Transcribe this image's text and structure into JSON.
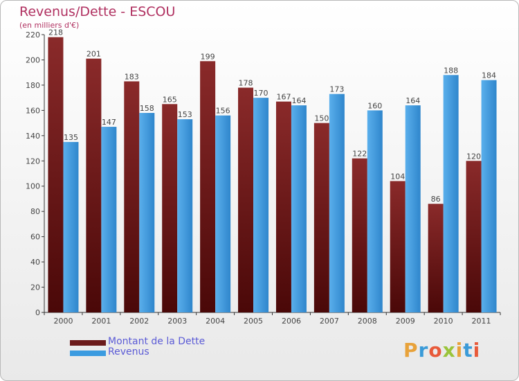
{
  "title": "Revenus/Dette - ESCOU",
  "subtitle": "(en milliers d'€)",
  "logo": {
    "text": "Proxiti",
    "colors": [
      "#e8a23a",
      "#3b9bd8",
      "#e85a3a",
      "#9ac43a",
      "#e8a23a",
      "#3b9bd8",
      "#e85a3a"
    ]
  },
  "colors": {
    "dette": "#6b1a1a",
    "revenus": "#3b9be0",
    "title": "#b03060",
    "legend_text": "#5b5bd6"
  },
  "chart_data": {
    "type": "bar",
    "title": "Revenus/Dette - ESCOU",
    "subtitle": "(en milliers d'€)",
    "categories": [
      "2000",
      "2001",
      "2002",
      "2003",
      "2004",
      "2005",
      "2006",
      "2007",
      "2008",
      "2009",
      "2010",
      "2011"
    ],
    "series": [
      {
        "name": "Montant de la Dette",
        "values": [
          218,
          201,
          183,
          165,
          199,
          178,
          167,
          150,
          122,
          104,
          86,
          120
        ]
      },
      {
        "name": "Revenus",
        "values": [
          135,
          147,
          158,
          153,
          156,
          170,
          164,
          173,
          160,
          164,
          188,
          184
        ]
      }
    ],
    "ylim": [
      0,
      220
    ],
    "yticks": [
      0,
      20,
      40,
      60,
      80,
      100,
      120,
      140,
      160,
      180,
      200,
      220
    ],
    "grid": false,
    "legend": "bottom-left"
  }
}
